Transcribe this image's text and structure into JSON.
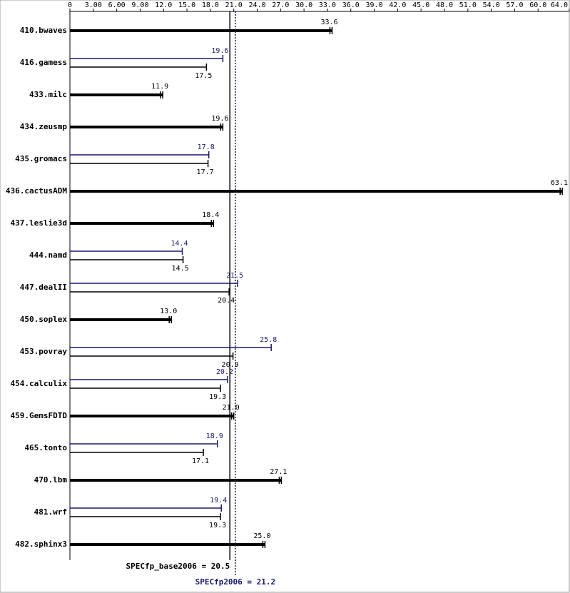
{
  "chart_data": {
    "type": "bar",
    "orientation": "horizontal",
    "categories": [
      "410.bwaves",
      "416.gamess",
      "433.milc",
      "434.zeusmp",
      "435.gromacs",
      "436.cactusADM",
      "437.leslie3d",
      "444.namd",
      "447.dealII",
      "450.soplex",
      "453.povray",
      "454.calculix",
      "459.GemsFDTD",
      "465.tonto",
      "470.lbm",
      "481.wrf",
      "482.sphinx3"
    ],
    "series": [
      {
        "color": "#191970",
        "values": [
          null,
          19.6,
          null,
          null,
          17.8,
          null,
          null,
          14.4,
          21.5,
          null,
          25.8,
          20.2,
          null,
          18.9,
          null,
          19.4,
          null
        ],
        "value_labels": [
          null,
          "19.6",
          null,
          null,
          "17.8",
          null,
          null,
          "14.4",
          "21.5",
          null,
          "25.8",
          "20.2",
          null,
          "18.9",
          null,
          "19.4",
          null
        ]
      },
      {
        "color": "#000000",
        "values": [
          33.6,
          17.5,
          11.9,
          19.6,
          17.7,
          63.1,
          18.4,
          14.5,
          20.4,
          13.0,
          20.9,
          19.3,
          21.0,
          17.1,
          27.1,
          19.3,
          25.0
        ],
        "value_labels": [
          "33.6",
          "17.5",
          "11.9",
          "19.6",
          "17.7",
          "63.1",
          "18.4",
          "14.5",
          "20.4",
          "13.0",
          "20.9",
          "19.3",
          "21.0",
          "17.1",
          "27.1",
          "19.3",
          "25.0"
        ]
      }
    ],
    "xlim": [
      0,
      64
    ],
    "xticks": [
      0,
      {
        "value": 3,
        "label": "3.00"
      },
      {
        "value": 6,
        "label": "6.00"
      },
      {
        "value": 9,
        "label": "9.00"
      },
      {
        "value": 12,
        "label": "12.0"
      },
      {
        "value": 15,
        "label": "15.0"
      },
      {
        "value": 18,
        "label": "18.0"
      },
      {
        "value": 21,
        "label": "21.0"
      },
      {
        "value": 24,
        "label": "24.0"
      },
      {
        "value": 27,
        "label": "27.0"
      },
      {
        "value": 30,
        "label": "30.0"
      },
      {
        "value": 33,
        "label": "33.0"
      },
      {
        "value": 36,
        "label": "36.0"
      },
      {
        "value": 39,
        "label": "39.0"
      },
      {
        "value": 42,
        "label": "42.0"
      },
      {
        "value": 45,
        "label": "45.0"
      },
      {
        "value": 48,
        "label": "48.0"
      },
      {
        "value": 51,
        "label": "51.0"
      },
      {
        "value": 54,
        "label": "54.0"
      },
      {
        "value": 57,
        "label": "57.0"
      },
      {
        "value": 60,
        "label": "60.0"
      },
      {
        "value": 64,
        "label": "64.0"
      }
    ],
    "reference_lines": [
      {
        "label": "SPECfp_base2006 = 20.5",
        "value": 20.5,
        "color": "#000000",
        "dashed": false
      },
      {
        "label": "SPECfp2006 = 21.2",
        "value": 21.2,
        "color": "#191970",
        "dashed": true
      }
    ]
  }
}
